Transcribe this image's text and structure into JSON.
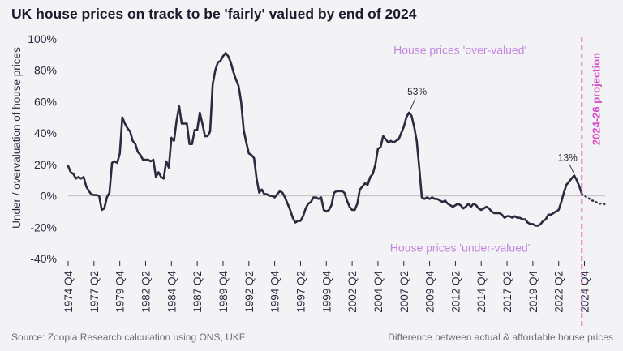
{
  "title": "UK house prices on track to be 'fairly' valued by end of 2024",
  "footer": {
    "source": "Source: Zoopla Research calculation using ONS, UKF",
    "caption": "Difference between actual & affordable house prices"
  },
  "colors": {
    "background": "#f3f2f4",
    "line": "#2b2a3e",
    "projection": "#d94fc6",
    "annotation": "#c485e0",
    "axis_text": "#2b2a3e",
    "zero_line": "#bdbdc4"
  },
  "chart_data": {
    "type": "line",
    "title": "UK house prices on track to be 'fairly' valued by end of 2024",
    "xlabel": "",
    "ylabel": "Under / overvaluation of house prices",
    "ylim": [
      -40,
      100
    ],
    "yticks": [
      -40,
      -20,
      0,
      20,
      40,
      60,
      80,
      100
    ],
    "ytick_labels": [
      "-40%",
      "-20%",
      "0%",
      "20%",
      "40%",
      "60%",
      "80%",
      "100%"
    ],
    "xlim": [
      1974.75,
      2026.75
    ],
    "xticks": [
      {
        "x": 1974.75,
        "label": "1974 Q4"
      },
      {
        "x": 1977.25,
        "label": "1977 Q2"
      },
      {
        "x": 1979.75,
        "label": "1979 Q4"
      },
      {
        "x": 1982.25,
        "label": "1982 Q2"
      },
      {
        "x": 1984.75,
        "label": "1984 Q4"
      },
      {
        "x": 1987.25,
        "label": "1987 Q2"
      },
      {
        "x": 1989.75,
        "label": "1989 Q4"
      },
      {
        "x": 1992.25,
        "label": "1992 Q2"
      },
      {
        "x": 1994.75,
        "label": "1994 Q4"
      },
      {
        "x": 1997.25,
        "label": "1997 Q2"
      },
      {
        "x": 1999.75,
        "label": "1999 Q4"
      },
      {
        "x": 2002.25,
        "label": "2002 Q2"
      },
      {
        "x": 2004.75,
        "label": "2004 Q4"
      },
      {
        "x": 2007.25,
        "label": "2007 Q2"
      },
      {
        "x": 2009.75,
        "label": "2009 Q4"
      },
      {
        "x": 2012.25,
        "label": "2012 Q2"
      },
      {
        "x": 2014.75,
        "label": "2014 Q4"
      },
      {
        "x": 2017.25,
        "label": "2017 Q2"
      },
      {
        "x": 2019.75,
        "label": "2019 Q4"
      },
      {
        "x": 2022.25,
        "label": "2022 Q2"
      },
      {
        "x": 2024.75,
        "label": "2024 Q4"
      }
    ],
    "grid": false,
    "series": [
      {
        "name": "",
        "style": "solid",
        "points": [
          [
            1974.75,
            19
          ],
          [
            1975.0,
            15
          ],
          [
            1975.25,
            14
          ],
          [
            1975.5,
            11
          ],
          [
            1975.75,
            12
          ],
          [
            1976.0,
            11
          ],
          [
            1976.25,
            12
          ],
          [
            1976.5,
            6
          ],
          [
            1976.75,
            3
          ],
          [
            1977.0,
            1
          ],
          [
            1977.25,
            0.5
          ],
          [
            1977.5,
            0.5
          ],
          [
            1977.75,
            0
          ],
          [
            1978.0,
            -9
          ],
          [
            1978.25,
            -8
          ],
          [
            1978.5,
            -1
          ],
          [
            1978.75,
            2
          ],
          [
            1979.0,
            21
          ],
          [
            1979.25,
            22
          ],
          [
            1979.5,
            21
          ],
          [
            1979.75,
            27
          ],
          [
            1980.0,
            50
          ],
          [
            1980.25,
            46
          ],
          [
            1980.5,
            43
          ],
          [
            1980.75,
            41
          ],
          [
            1981.0,
            35
          ],
          [
            1981.25,
            33
          ],
          [
            1981.5,
            28
          ],
          [
            1981.75,
            26
          ],
          [
            1982.0,
            23
          ],
          [
            1982.25,
            23
          ],
          [
            1982.5,
            23
          ],
          [
            1982.75,
            22
          ],
          [
            1983.0,
            23
          ],
          [
            1983.25,
            12
          ],
          [
            1983.5,
            15
          ],
          [
            1983.75,
            12
          ],
          [
            1984.0,
            11
          ],
          [
            1984.25,
            22
          ],
          [
            1984.5,
            18
          ],
          [
            1984.75,
            37
          ],
          [
            1985.0,
            35
          ],
          [
            1985.25,
            48
          ],
          [
            1985.5,
            57
          ],
          [
            1985.75,
            46
          ],
          [
            1986.0,
            46
          ],
          [
            1986.25,
            46
          ],
          [
            1986.5,
            33
          ],
          [
            1986.75,
            33
          ],
          [
            1987.0,
            42
          ],
          [
            1987.25,
            42
          ],
          [
            1987.5,
            53
          ],
          [
            1987.75,
            46
          ],
          [
            1988.0,
            38
          ],
          [
            1988.25,
            38
          ],
          [
            1988.5,
            41
          ],
          [
            1988.75,
            71
          ],
          [
            1989.0,
            80
          ],
          [
            1989.25,
            85
          ],
          [
            1989.5,
            86
          ],
          [
            1989.75,
            89
          ],
          [
            1990.0,
            91
          ],
          [
            1990.25,
            89
          ],
          [
            1990.5,
            85
          ],
          [
            1990.75,
            79
          ],
          [
            1991.0,
            74
          ],
          [
            1991.25,
            70
          ],
          [
            1991.5,
            60
          ],
          [
            1991.75,
            42
          ],
          [
            1992.0,
            34
          ],
          [
            1992.25,
            27
          ],
          [
            1992.5,
            26
          ],
          [
            1992.75,
            24
          ],
          [
            1993.0,
            11
          ],
          [
            1993.25,
            2
          ],
          [
            1993.5,
            4
          ],
          [
            1993.75,
            1
          ],
          [
            1994.0,
            1
          ],
          [
            1994.25,
            0
          ],
          [
            1994.5,
            0
          ],
          [
            1994.75,
            -1
          ],
          [
            1995.0,
            1
          ],
          [
            1995.25,
            3
          ],
          [
            1995.5,
            2
          ],
          [
            1995.75,
            -1
          ],
          [
            1996.0,
            -5
          ],
          [
            1996.25,
            -9
          ],
          [
            1996.5,
            -14
          ],
          [
            1996.75,
            -17
          ],
          [
            1997.0,
            -16
          ],
          [
            1997.25,
            -16
          ],
          [
            1997.5,
            -13
          ],
          [
            1997.75,
            -8
          ],
          [
            1998.0,
            -5
          ],
          [
            1998.25,
            -4
          ],
          [
            1998.5,
            -1
          ],
          [
            1998.75,
            -1
          ],
          [
            1999.0,
            -2
          ],
          [
            1999.25,
            -1
          ],
          [
            1999.5,
            -9
          ],
          [
            1999.75,
            -10
          ],
          [
            2000.0,
            -9
          ],
          [
            2000.25,
            -6
          ],
          [
            2000.5,
            2
          ],
          [
            2000.75,
            3
          ],
          [
            2001.0,
            3
          ],
          [
            2001.25,
            3
          ],
          [
            2001.5,
            2
          ],
          [
            2001.75,
            -3
          ],
          [
            2002.0,
            -7
          ],
          [
            2002.25,
            -9
          ],
          [
            2002.5,
            -9
          ],
          [
            2002.75,
            -5
          ],
          [
            2003.0,
            4
          ],
          [
            2003.25,
            6
          ],
          [
            2003.5,
            8
          ],
          [
            2003.75,
            7
          ],
          [
            2004.0,
            12
          ],
          [
            2004.25,
            14
          ],
          [
            2004.5,
            20
          ],
          [
            2004.75,
            30
          ],
          [
            2005.0,
            31
          ],
          [
            2005.25,
            38
          ],
          [
            2005.5,
            36
          ],
          [
            2005.75,
            34
          ],
          [
            2006.0,
            35
          ],
          [
            2006.25,
            34
          ],
          [
            2006.5,
            35
          ],
          [
            2006.75,
            36
          ],
          [
            2007.0,
            40
          ],
          [
            2007.25,
            44
          ],
          [
            2007.5,
            50
          ],
          [
            2007.75,
            53
          ],
          [
            2008.0,
            51
          ],
          [
            2008.25,
            44
          ],
          [
            2008.5,
            35
          ],
          [
            2008.75,
            18
          ],
          [
            2009.0,
            -1
          ],
          [
            2009.25,
            -2
          ],
          [
            2009.5,
            -1
          ],
          [
            2009.75,
            -2
          ],
          [
            2010.0,
            -1
          ],
          [
            2010.25,
            -2
          ],
          [
            2010.5,
            -2
          ],
          [
            2010.75,
            -3
          ],
          [
            2011.0,
            -4
          ],
          [
            2011.25,
            -3
          ],
          [
            2011.5,
            -5
          ],
          [
            2011.75,
            -6
          ],
          [
            2012.0,
            -7
          ],
          [
            2012.25,
            -6
          ],
          [
            2012.5,
            -5
          ],
          [
            2012.75,
            -6
          ],
          [
            2013.0,
            -8
          ],
          [
            2013.25,
            -7
          ],
          [
            2013.5,
            -5
          ],
          [
            2013.75,
            -7
          ],
          [
            2014.0,
            -5
          ],
          [
            2014.25,
            -6
          ],
          [
            2014.5,
            -8
          ],
          [
            2014.75,
            -9
          ],
          [
            2015.0,
            -8
          ],
          [
            2015.25,
            -7
          ],
          [
            2015.5,
            -8
          ],
          [
            2015.75,
            -10
          ],
          [
            2016.0,
            -11
          ],
          [
            2016.25,
            -11
          ],
          [
            2016.5,
            -11
          ],
          [
            2016.75,
            -12
          ],
          [
            2017.0,
            -14
          ],
          [
            2017.25,
            -13
          ],
          [
            2017.5,
            -13
          ],
          [
            2017.75,
            -14
          ],
          [
            2018.0,
            -13
          ],
          [
            2018.25,
            -14
          ],
          [
            2018.5,
            -14
          ],
          [
            2018.75,
            -15
          ],
          [
            2019.0,
            -15
          ],
          [
            2019.25,
            -17
          ],
          [
            2019.5,
            -18
          ],
          [
            2019.75,
            -18
          ],
          [
            2020.0,
            -19
          ],
          [
            2020.25,
            -19
          ],
          [
            2020.5,
            -18
          ],
          [
            2020.75,
            -16
          ],
          [
            2021.0,
            -15
          ],
          [
            2021.25,
            -12
          ],
          [
            2021.5,
            -12
          ],
          [
            2021.75,
            -11
          ],
          [
            2022.0,
            -10
          ],
          [
            2022.25,
            -9
          ],
          [
            2022.5,
            -4
          ],
          [
            2022.75,
            2
          ],
          [
            2023.0,
            7
          ],
          [
            2023.25,
            9
          ],
          [
            2023.5,
            11
          ],
          [
            2023.75,
            13
          ],
          [
            2024.0,
            10
          ],
          [
            2024.25,
            6
          ],
          [
            2024.5,
            1
          ]
        ]
      },
      {
        "name": "",
        "style": "dotted",
        "points": [
          [
            2024.5,
            1
          ],
          [
            2024.75,
            0
          ],
          [
            2025.0,
            -1
          ],
          [
            2025.25,
            -2
          ],
          [
            2025.5,
            -3
          ],
          [
            2025.75,
            -3.5
          ],
          [
            2026.0,
            -4.5
          ],
          [
            2026.25,
            -5
          ],
          [
            2026.5,
            -5
          ],
          [
            2026.75,
            -5.5
          ]
        ]
      }
    ],
    "projection_line": {
      "x": 2024.5,
      "label": "2024-26 projection"
    },
    "annotations": [
      {
        "text": "House prices 'over-valued'",
        "x": 2012.7,
        "y": 93
      },
      {
        "text": "House prices 'under-valued'",
        "x": 2012.7,
        "y": -33
      },
      {
        "text": "53%",
        "x": 2007.75,
        "y": 53
      },
      {
        "text": "13%",
        "x": 2023.75,
        "y": 13
      }
    ]
  }
}
